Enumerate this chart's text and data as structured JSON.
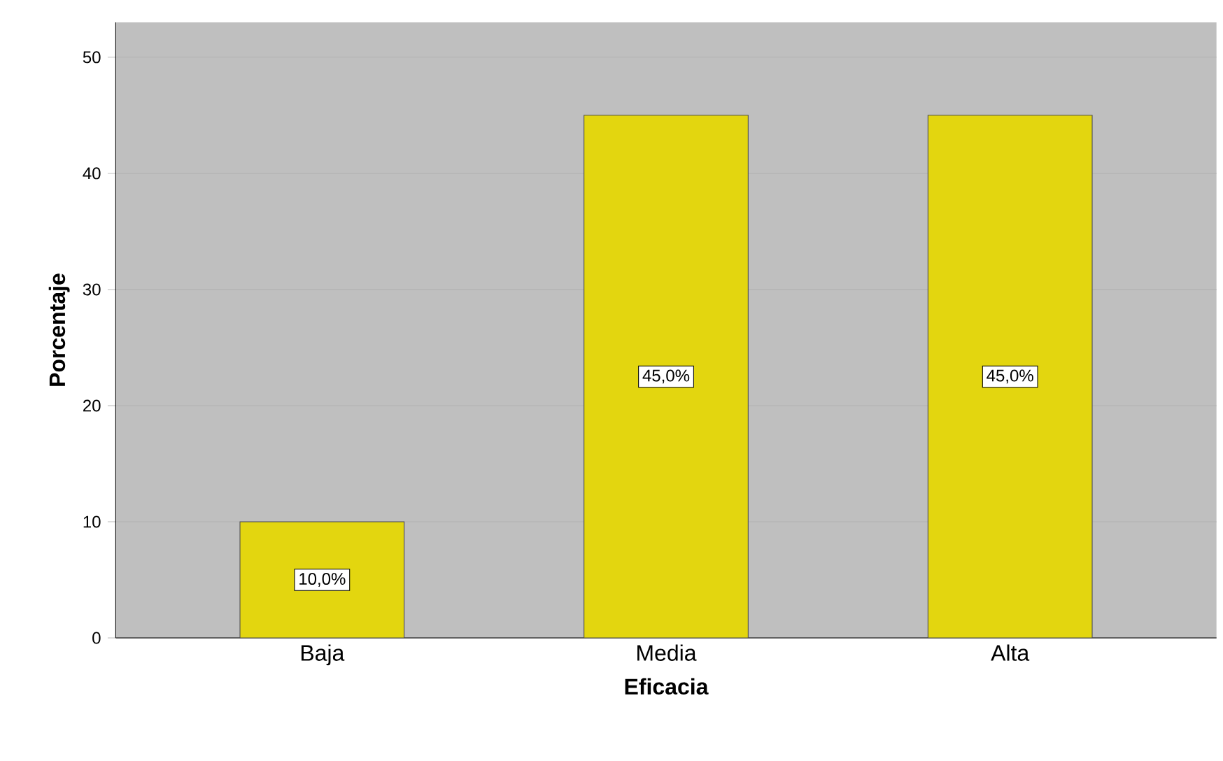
{
  "chart_data": {
    "type": "bar",
    "xlabel": "Eficacia",
    "ylabel": "Porcentaje",
    "categories": [
      "Baja",
      "Media",
      "Alta"
    ],
    "values": [
      10,
      45,
      45
    ],
    "value_labels": [
      "10,0%",
      "45,0%",
      "45,0%"
    ],
    "color": "#e3d60f",
    "ylim": [
      0,
      53
    ],
    "yticks": [
      0,
      10,
      20,
      30,
      40,
      50
    ],
    "grid": "y"
  }
}
